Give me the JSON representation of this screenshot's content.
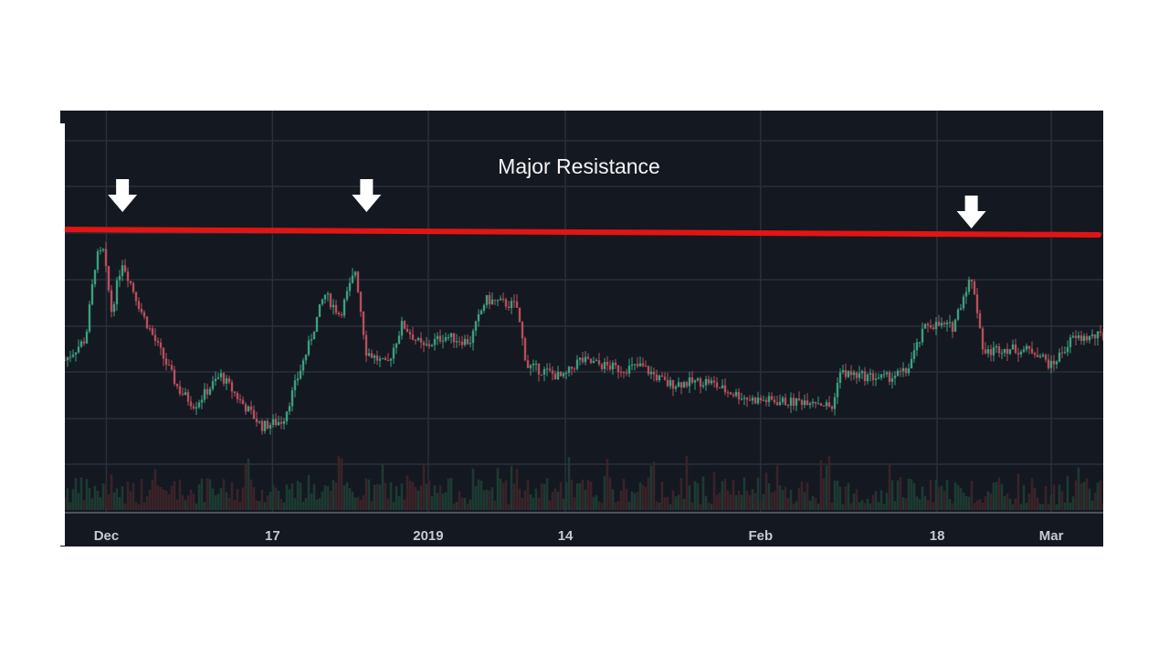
{
  "chart_data": {
    "type": "candlestick",
    "annotation": "Major Resistance",
    "x_ticks": [
      {
        "label": "Dec",
        "t": 0.04
      },
      {
        "label": "17",
        "t": 0.2
      },
      {
        "label": "2019",
        "t": 0.35
      },
      {
        "label": "14",
        "t": 0.482
      },
      {
        "label": "Feb",
        "t": 0.67
      },
      {
        "label": "18",
        "t": 0.84
      },
      {
        "label": "Mar",
        "t": 0.95
      }
    ],
    "resistance": {
      "t_start": 0.0,
      "t_end": 1.0,
      "v_start": 0.75,
      "v_end": 0.745
    },
    "arrows": [
      0.052,
      0.28,
      0.873
    ],
    "price_path": [
      [
        0.0,
        0.4
      ],
      [
        0.02,
        0.47
      ],
      [
        0.03,
        0.74
      ],
      [
        0.037,
        0.76
      ],
      [
        0.045,
        0.56
      ],
      [
        0.055,
        0.73
      ],
      [
        0.075,
        0.55
      ],
      [
        0.11,
        0.3
      ],
      [
        0.125,
        0.25
      ],
      [
        0.15,
        0.35
      ],
      [
        0.17,
        0.26
      ],
      [
        0.19,
        0.18
      ],
      [
        0.21,
        0.2
      ],
      [
        0.235,
        0.45
      ],
      [
        0.25,
        0.62
      ],
      [
        0.265,
        0.55
      ],
      [
        0.28,
        0.7
      ],
      [
        0.29,
        0.43
      ],
      [
        0.31,
        0.38
      ],
      [
        0.325,
        0.52
      ],
      [
        0.345,
        0.44
      ],
      [
        0.365,
        0.48
      ],
      [
        0.39,
        0.46
      ],
      [
        0.405,
        0.6
      ],
      [
        0.435,
        0.58
      ],
      [
        0.445,
        0.38
      ],
      [
        0.465,
        0.36
      ],
      [
        0.48,
        0.34
      ],
      [
        0.495,
        0.4
      ],
      [
        0.535,
        0.37
      ],
      [
        0.555,
        0.38
      ],
      [
        0.58,
        0.32
      ],
      [
        0.62,
        0.33
      ],
      [
        0.635,
        0.3
      ],
      [
        0.66,
        0.27
      ],
      [
        0.7,
        0.26
      ],
      [
        0.72,
        0.27
      ],
      [
        0.74,
        0.24
      ],
      [
        0.745,
        0.36
      ],
      [
        0.76,
        0.35
      ],
      [
        0.79,
        0.34
      ],
      [
        0.81,
        0.36
      ],
      [
        0.83,
        0.52
      ],
      [
        0.855,
        0.51
      ],
      [
        0.87,
        0.66
      ],
      [
        0.875,
        0.65
      ],
      [
        0.885,
        0.42
      ],
      [
        0.9,
        0.44
      ],
      [
        0.935,
        0.43
      ],
      [
        0.95,
        0.38
      ],
      [
        0.97,
        0.47
      ],
      [
        1.0,
        0.48
      ]
    ]
  }
}
